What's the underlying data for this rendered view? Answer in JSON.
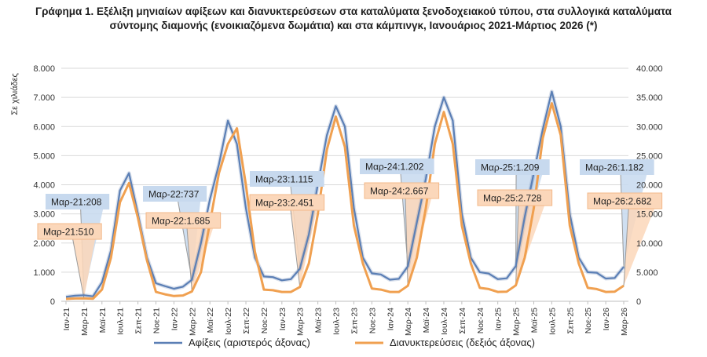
{
  "chart_data": {
    "type": "line",
    "title_line1": "Γράφημα 1. Εξέλιξη μηνιαίων αφίξεων και διανυκτερεύσεων στα καταλύματα ξενοδοχειακού τύπου, στα συλλογικά καταλύματα",
    "title_line2": "σύντομης διαμονής (ενοικιαζόμενα δωμάτια) και στα κάμπινγκ, Ιανουάριος 2021-Μάρτιος 2026 (*)",
    "ylabel": "Σε χιλιάδες",
    "ylim": [
      0,
      8000
    ],
    "y2lim": [
      0,
      40000
    ],
    "yticks": [
      "0",
      "1.000",
      "2.000",
      "3.000",
      "4.000",
      "5.000",
      "6.000",
      "7.000",
      "8.000"
    ],
    "y2ticks": [
      "0",
      "5.000",
      "10.000",
      "15.000",
      "20.000",
      "25.000",
      "30.000",
      "35.000",
      "40.000"
    ],
    "x_tick_labels": [
      "Ιαν-21",
      "Μαρ-21",
      "Μαϊ-21",
      "Ιουλ-21",
      "Σεπ-21",
      "Νοε-21",
      "Ιαν-22",
      "Μαρ-22",
      "Μαϊ-22",
      "Ιουλ-22",
      "Σεπ-22",
      "Νοε-22",
      "Ιαν-23",
      "Μαρ-23",
      "Μαϊ-23",
      "Ιουλ-23",
      "Σεπ-23",
      "Νοε-23",
      "Ιαν-24",
      "Μαρ-24",
      "Μαϊ-24",
      "Ιουλ-24",
      "Σεπ-24",
      "Νοε-24",
      "Ιαν-25",
      "Μαρ-25",
      "Μαϊ-25",
      "Ιουλ-25",
      "Σεπ-25",
      "Νοε-25",
      "Ιαν-26",
      "Μαρ-26"
    ],
    "series": [
      {
        "name": "Αφίξεις (αριστερός άξονας)",
        "axis": "left",
        "color": "#5B7FB5",
        "values": [
          150,
          190,
          208,
          170,
          650,
          1750,
          3800,
          4400,
          3000,
          1500,
          620,
          520,
          430,
          500,
          737,
          2000,
          3500,
          4700,
          6200,
          5400,
          3200,
          1500,
          850,
          830,
          720,
          760,
          1115,
          2300,
          4000,
          5700,
          6700,
          6000,
          3200,
          1500,
          960,
          920,
          740,
          770,
          1202,
          2700,
          4200,
          6000,
          7000,
          6200,
          3000,
          1500,
          1000,
          950,
          760,
          790,
          1209,
          2900,
          4400,
          5900,
          7200,
          6000,
          3000,
          1500,
          1000,
          980,
          780,
          800,
          1182
        ]
      },
      {
        "name": "Διανυκτερεύσεις (δεξιός άξονας)",
        "axis": "right",
        "color": "#F0A050",
        "values": [
          400,
          480,
          510,
          450,
          2000,
          7500,
          17000,
          20300,
          14300,
          7000,
          1600,
          1200,
          900,
          1000,
          1685,
          5000,
          13500,
          22000,
          27000,
          29700,
          20000,
          8500,
          2000,
          1900,
          1600,
          1600,
          2451,
          6500,
          15000,
          26000,
          31700,
          26500,
          13000,
          6500,
          2200,
          2000,
          1600,
          1600,
          2667,
          7500,
          16000,
          27000,
          32500,
          27000,
          13000,
          6500,
          2300,
          2100,
          1600,
          1650,
          2728,
          7500,
          16000,
          28000,
          34000,
          28500,
          13000,
          6500,
          2300,
          2100,
          1600,
          1650,
          2682
        ]
      }
    ],
    "annotations": [
      {
        "series": "Αφίξεις (αριστερός άξονας)",
        "x": "Μαρ-21",
        "text": "Μαρ-21:208"
      },
      {
        "series": "Διανυκτερεύσεις (δεξιός άξονας)",
        "x": "Μαρ-21",
        "text": "Μαρ-21:510"
      },
      {
        "series": "Αφίξεις (αριστερός άξονας)",
        "x": "Μαρ-22",
        "text": "Μαρ-22:737"
      },
      {
        "series": "Διανυκτερεύσεις (δεξιός άξονας)",
        "x": "Μαρ-22",
        "text": "Μαρ-22:1.685"
      },
      {
        "series": "Αφίξεις (αριστερός άξονας)",
        "x": "Μαρ-23",
        "text": "Μαρ-23:1.115"
      },
      {
        "series": "Διανυκτερεύσεις (δεξιός άξονας)",
        "x": "Μαρ-23",
        "text": "Μαρ-23:2.451"
      },
      {
        "series": "Αφίξεις (αριστερός άξονας)",
        "x": "Μαρ-24",
        "text": "Μαρ-24:1.202"
      },
      {
        "series": "Διανυκτερεύσεις (δεξιός άξονας)",
        "x": "Μαρ-24",
        "text": "Μαρ-24:2.667"
      },
      {
        "series": "Αφίξεις (αριστερός άξονας)",
        "x": "Μαρ-25",
        "text": "Μαρ-25:1.209"
      },
      {
        "series": "Διανυκτερεύσεις (δεξιός άξονας)",
        "x": "Μαρ-25",
        "text": "Μαρ-25:2.728"
      },
      {
        "series": "Αφίξεις (αριστερός άξονας)",
        "x": "Μαρ-26",
        "text": "Μαρ-26:1.182"
      },
      {
        "series": "Διανυκτερεύσεις (δεξιός άξονας)",
        "x": "Μαρ-26",
        "text": "Μαρ-26:2.682"
      }
    ],
    "grid": true,
    "legend_position": "bottom"
  }
}
